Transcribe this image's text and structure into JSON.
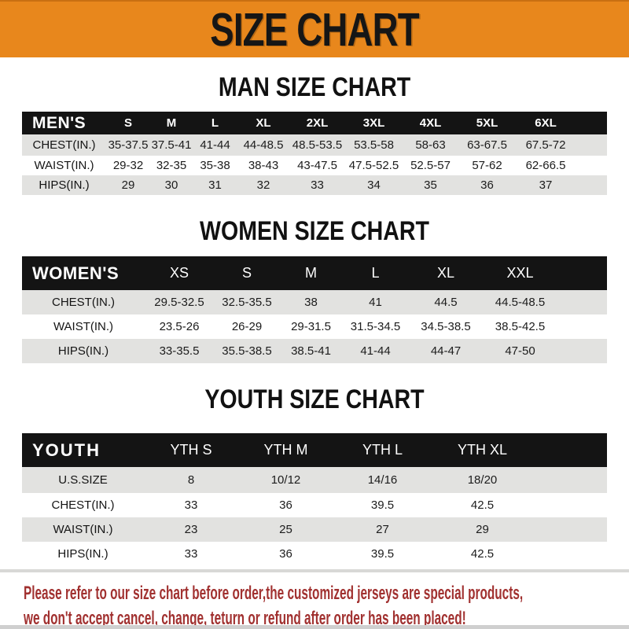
{
  "banner": {
    "title": "SIZE CHART"
  },
  "colors": {
    "banner_bg": "#E8871C",
    "header_bar_bg": "#141414",
    "stripe_row_bg": "#E2E2E0",
    "notice_color": "#A13130",
    "title_color": "#111111"
  },
  "sections": [
    {
      "id": "men",
      "title": "MAN SIZE CHART",
      "header": [
        "MEN'S",
        "S",
        "M",
        "L",
        "XL",
        "2XL",
        "3XL",
        "4XL",
        "5XL",
        "6XL"
      ],
      "rows": [
        [
          "CHEST(IN.)",
          "35-37.5",
          "37.5-41",
          "41-44",
          "44-48.5",
          "48.5-53.5",
          "53.5-58",
          "58-63",
          "63-67.5",
          "67.5-72"
        ],
        [
          "WAIST(IN.)",
          "29-32",
          "32-35",
          "35-38",
          "38-43",
          "43-47.5",
          "47.5-52.5",
          "52.5-57",
          "57-62",
          "62-66.5"
        ],
        [
          "HIPS(IN.)",
          "29",
          "30",
          "31",
          "32",
          "33",
          "34",
          "35",
          "36",
          "37"
        ]
      ]
    },
    {
      "id": "women",
      "title": "WOMEN SIZE CHART",
      "header": [
        "WOMEN'S",
        "XS",
        "S",
        "M",
        "L",
        "XL",
        "XXL"
      ],
      "rows": [
        [
          "CHEST(IN.)",
          "29.5-32.5",
          "32.5-35.5",
          "38",
          "41",
          "44.5",
          "44.5-48.5"
        ],
        [
          "WAIST(IN.)",
          "23.5-26",
          "26-29",
          "29-31.5",
          "31.5-34.5",
          "34.5-38.5",
          "38.5-42.5"
        ],
        [
          "HIPS(IN.)",
          "33-35.5",
          "35.5-38.5",
          "38.5-41",
          "41-44",
          "44-47",
          "47-50"
        ]
      ]
    },
    {
      "id": "youth",
      "title": "YOUTH SIZE CHART",
      "header": [
        "YOUTH",
        "YTH S",
        "YTH M",
        "YTH L",
        "YTH XL"
      ],
      "rows": [
        [
          "U.S.SIZE",
          "8",
          "10/12",
          "14/16",
          "18/20"
        ],
        [
          "CHEST(IN.)",
          "33",
          "36",
          "39.5",
          "42.5"
        ],
        [
          "WAIST(IN.)",
          "23",
          "25",
          "27",
          "29"
        ],
        [
          "HIPS(IN.)",
          "33",
          "36",
          "39.5",
          "42.5"
        ]
      ]
    }
  ],
  "footer": {
    "line1": "Please refer to our size chart before order,the customized jerseys are special products,",
    "line2": "we don't accept cancel, change, teturn or refund after order has been placed!"
  }
}
